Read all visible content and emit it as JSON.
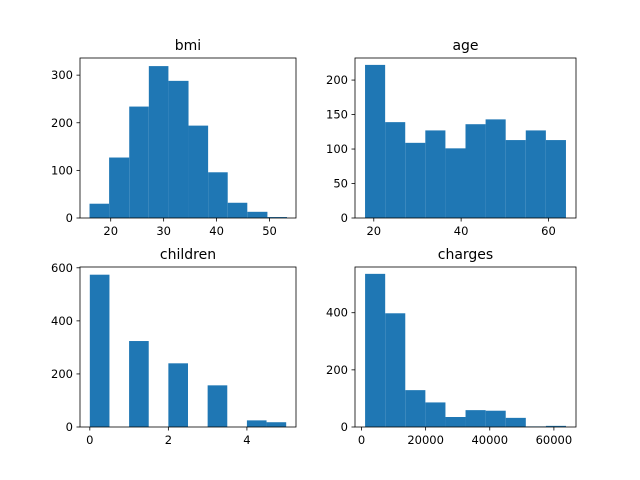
{
  "chart_data": [
    {
      "type": "bar",
      "title": "bmi",
      "xlim": [
        14.2,
        55.0
      ],
      "ylim": [
        0,
        336
      ],
      "xticks": [
        20,
        30,
        40,
        50
      ],
      "yticks": [
        0,
        100,
        200,
        300
      ],
      "bins": [
        {
          "x0": 16.0,
          "x1": 19.7,
          "count": 30
        },
        {
          "x0": 19.7,
          "x1": 23.5,
          "count": 127
        },
        {
          "x0": 23.5,
          "x1": 27.2,
          "count": 234
        },
        {
          "x0": 27.2,
          "x1": 30.9,
          "count": 319
        },
        {
          "x0": 30.9,
          "x1": 34.7,
          "count": 288
        },
        {
          "x0": 34.7,
          "x1": 38.4,
          "count": 194
        },
        {
          "x0": 38.4,
          "x1": 42.1,
          "count": 96
        },
        {
          "x0": 42.1,
          "x1": 45.8,
          "count": 32
        },
        {
          "x0": 45.8,
          "x1": 49.6,
          "count": 13
        },
        {
          "x0": 49.6,
          "x1": 53.3,
          "count": 2
        }
      ]
    },
    {
      "type": "bar",
      "title": "age",
      "xlim": [
        15.7,
        66.3
      ],
      "ylim": [
        0,
        232
      ],
      "xticks": [
        20,
        40,
        60
      ],
      "yticks": [
        0,
        50,
        100,
        150,
        200
      ],
      "bins": [
        {
          "x0": 18.0,
          "x1": 22.6,
          "count": 222
        },
        {
          "x0": 22.6,
          "x1": 27.2,
          "count": 139
        },
        {
          "x0": 27.2,
          "x1": 31.8,
          "count": 109
        },
        {
          "x0": 31.8,
          "x1": 36.4,
          "count": 127
        },
        {
          "x0": 36.4,
          "x1": 41.0,
          "count": 101
        },
        {
          "x0": 41.0,
          "x1": 45.6,
          "count": 136
        },
        {
          "x0": 45.6,
          "x1": 50.2,
          "count": 143
        },
        {
          "x0": 50.2,
          "x1": 54.8,
          "count": 113
        },
        {
          "x0": 54.8,
          "x1": 59.4,
          "count": 127
        },
        {
          "x0": 59.4,
          "x1": 64.0,
          "count": 113
        }
      ]
    },
    {
      "type": "bar",
      "title": "children",
      "xlim": [
        -0.25,
        5.25
      ],
      "ylim": [
        0,
        603
      ],
      "xticks": [
        0,
        2,
        4
      ],
      "yticks": [
        0,
        200,
        400,
        600
      ],
      "bins": [
        {
          "x0": 0.0,
          "x1": 0.5,
          "count": 574
        },
        {
          "x0": 1.0,
          "x1": 1.5,
          "count": 324
        },
        {
          "x0": 2.0,
          "x1": 2.5,
          "count": 240
        },
        {
          "x0": 3.0,
          "x1": 3.5,
          "count": 157
        },
        {
          "x0": 4.0,
          "x1": 4.5,
          "count": 25
        },
        {
          "x0": 4.5,
          "x1": 5.0,
          "count": 18
        }
      ]
    },
    {
      "type": "bar",
      "title": "charges",
      "xlim": [
        -2025,
        66895
      ],
      "ylim": [
        0,
        560
      ],
      "xticks": [
        0,
        20000,
        40000,
        60000
      ],
      "yticks": [
        0,
        200,
        400
      ],
      "bins": [
        {
          "x0": 1122,
          "x1": 7387,
          "count": 536
        },
        {
          "x0": 7387,
          "x1": 13652,
          "count": 398
        },
        {
          "x0": 13652,
          "x1": 19917,
          "count": 129
        },
        {
          "x0": 19917,
          "x1": 26182,
          "count": 86
        },
        {
          "x0": 26182,
          "x1": 32447,
          "count": 35
        },
        {
          "x0": 32447,
          "x1": 38712,
          "count": 59
        },
        {
          "x0": 38712,
          "x1": 44977,
          "count": 57
        },
        {
          "x0": 44977,
          "x1": 51242,
          "count": 32
        },
        {
          "x0": 51242,
          "x1": 57507,
          "count": 2
        },
        {
          "x0": 57507,
          "x1": 63770,
          "count": 4
        }
      ]
    }
  ],
  "colors": {
    "bar": "#1f77b4",
    "axis": "#000000",
    "background": "#ffffff"
  }
}
